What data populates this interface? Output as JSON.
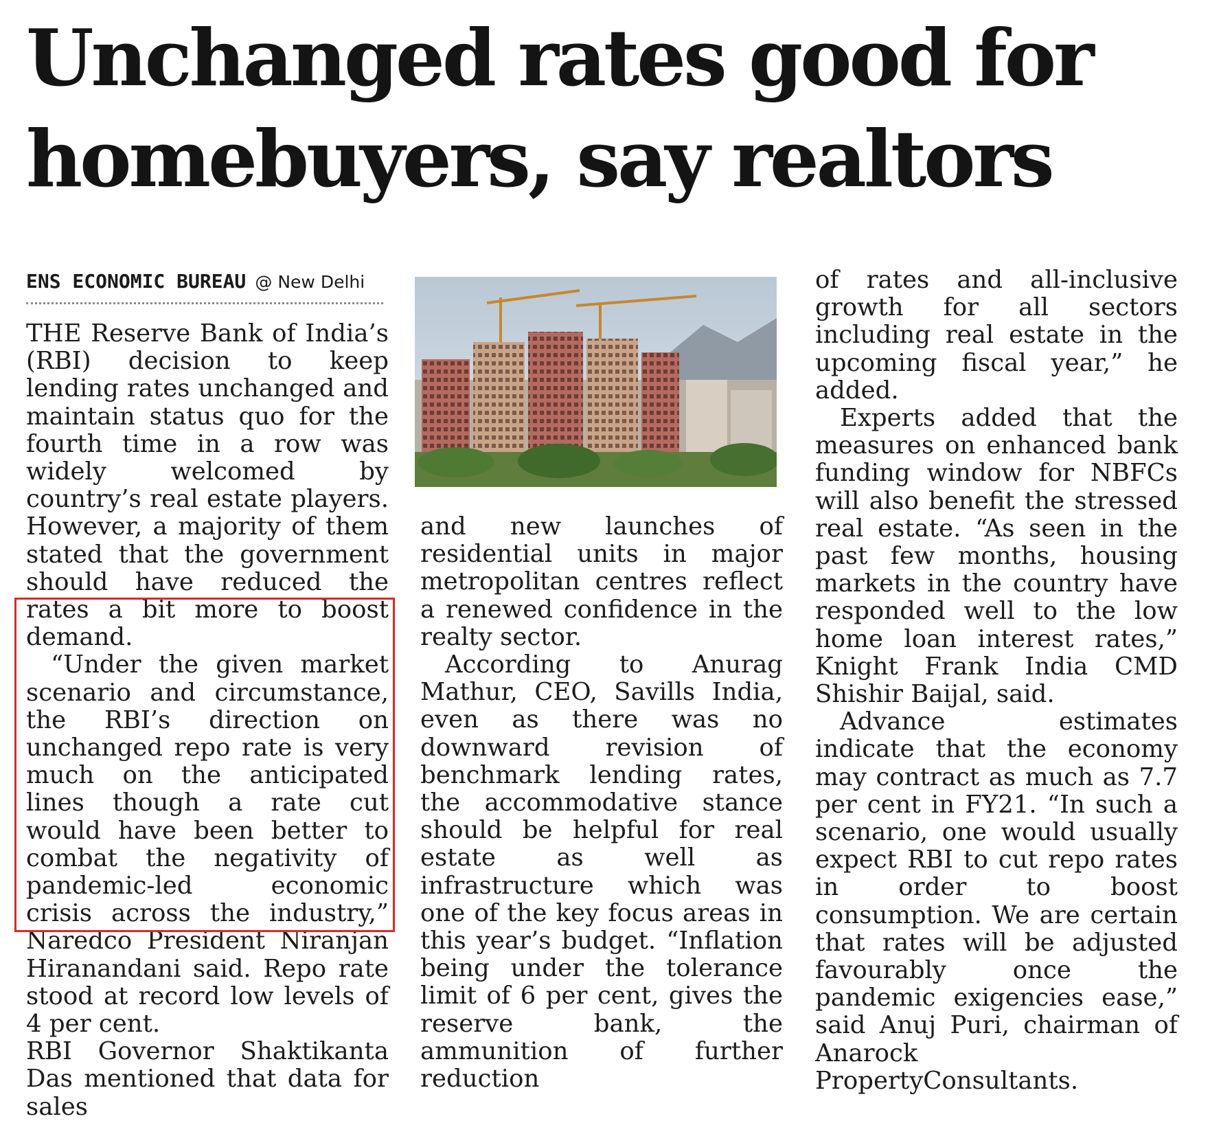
{
  "article": {
    "headline_line1": "Unchanged rates good for",
    "headline_line2": "homebuyers, say realtors",
    "byline_bureau": "ENS ECONOMIC BUREAU",
    "byline_location": "@ New Delhi"
  },
  "column1": [
    "THE Reserve Bank of India’s (RBI) decision to keep lending rates unchanged and maintain status quo for the fourth time in a row was widely welcomed by country’s real estate players. However, a majority of them stated that the government should have reduced the rates a bit more to boost demand.",
    "“Under the given market scenario and circumstance, the RBI’s direction on unchanged repo rate is very much on the anticipated lines though a rate cut would have been better to combat the negativity of pandemic-led economic crisis across the industry,” Naredco President Niranjan Hiranandani said. Repo rate stood at record low levels of 4 per cent.",
    "RBI Governor Shaktikanta Das mentioned that data for sales"
  ],
  "column2": [
    "and new launches of residential units in major metropolitan centres reflect a renewed confidence in the realty sector.",
    "According to Anurag Mathur, CEO, Savills India, even as there was no downward revision of benchmark lending rates, the accommodative stance should be helpful for real estate as well as infrastructure which was one of the key focus areas in this year’s budget. “Inflation being under the tolerance limit of 6 per cent, gives the reserve bank, the ammunition of further reduction"
  ],
  "column3": [
    "of rates and all-inclusive growth for all sectors including real estate in the upcoming fiscal year,” he added.",
    "Experts added that the measures on enhanced bank funding window for NBFCs will also benefit the stressed real estate. “As seen in the past few months, housing markets in the country have responded well to the low home loan interest rates,” Knight Frank India CMD Shishir Baijal, said.",
    "Advance estimates indicate that the economy may contract as much as 7.7 per cent in FY21. “In such a scenario, one would usually expect RBI to cut repo rates in order to boost consumption. We are certain that rates will be adjusted favourably once the pandemic exigencies ease,” said Anuj Puri, chairman of Anarock PropertyConsultants."
  ],
  "colors": {
    "highlight_border": "#d62b2b",
    "text": "#1c1c1c"
  }
}
